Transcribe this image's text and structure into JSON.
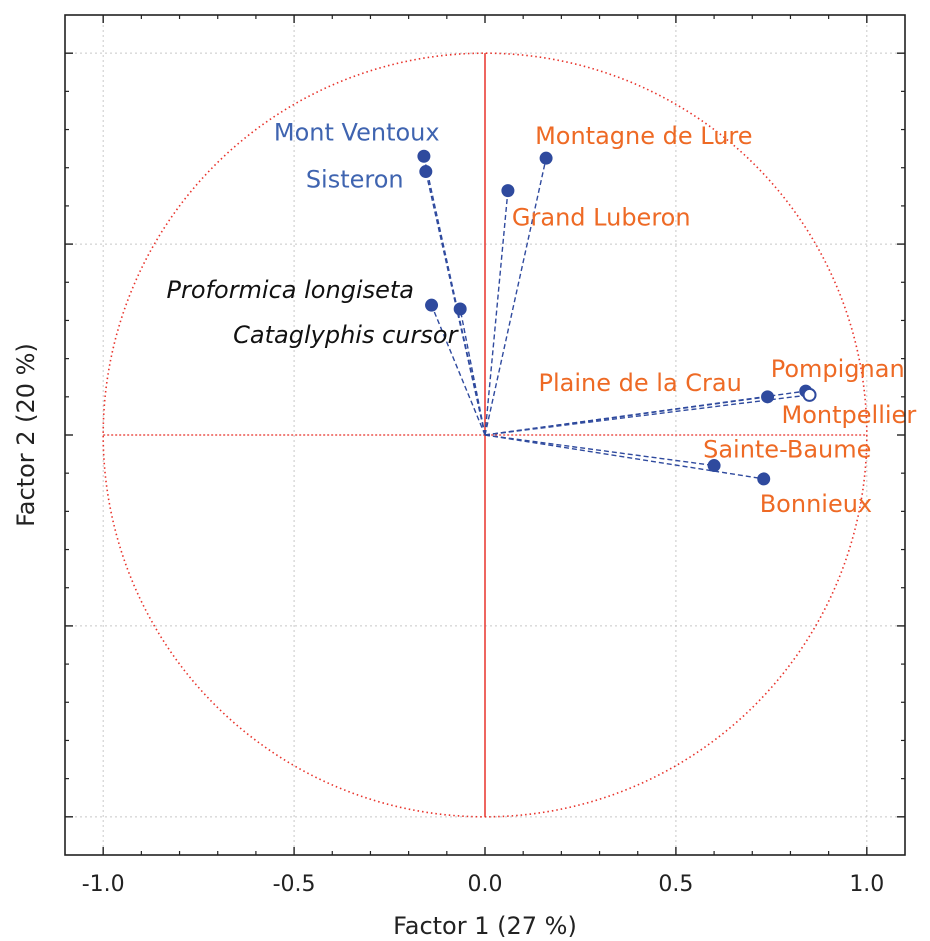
{
  "chart_data": {
    "type": "scatter",
    "title": "",
    "xlabel": "Factor 1 (27 %)",
    "ylabel": "Factor 2 (20 %)",
    "xlim": [
      -1.1,
      1.1
    ],
    "ylim": [
      -1.1,
      1.1
    ],
    "x_ticks": [
      -1.0,
      -0.5,
      0.0,
      0.5,
      1.0
    ],
    "x_tick_labels": [
      "-1.0",
      "-0.5",
      "0.0",
      "0.5",
      "1.0"
    ],
    "y_ticks": [
      -1.0,
      -0.5,
      0.0,
      0.5,
      1.0
    ],
    "grid": true,
    "unit_circle": true,
    "colors": {
      "circle": "#e8332b",
      "axes_cross": "#e8332b",
      "vectors": "#2f4a9e",
      "points": "#2f4a9e",
      "label_blue": "#3f64b0",
      "label_orange": "#ee6a25",
      "label_black": "#111111"
    },
    "points": [
      {
        "label": "Mont Ventoux",
        "x": -0.16,
        "y": 0.73,
        "label_color": "blue",
        "italic": false
      },
      {
        "label": "Sisteron",
        "x": -0.155,
        "y": 0.69,
        "label_color": "blue",
        "italic": false
      },
      {
        "label": "Montagne de Lure",
        "x": 0.16,
        "y": 0.725,
        "label_color": "orange",
        "italic": false
      },
      {
        "label": "Grand Luberon",
        "x": 0.06,
        "y": 0.64,
        "label_color": "orange",
        "italic": false
      },
      {
        "label": "Proformica longiseta",
        "x": -0.14,
        "y": 0.34,
        "label_color": "black",
        "italic": true
      },
      {
        "label": "Cataglyphis cursor",
        "x": -0.065,
        "y": 0.33,
        "label_color": "black",
        "italic": true
      },
      {
        "label": "Pompignan",
        "x": 0.84,
        "y": 0.115,
        "label_color": "orange",
        "italic": false
      },
      {
        "label": "Montpellier",
        "x": 0.85,
        "y": 0.105,
        "label_color": "orange",
        "italic": false,
        "open_marker": true
      },
      {
        "label": "Plaine de la Crau",
        "x": 0.74,
        "y": 0.1,
        "label_color": "orange",
        "italic": false
      },
      {
        "label": "Sainte-Baume",
        "x": 0.6,
        "y": -0.08,
        "label_color": "orange",
        "italic": false
      },
      {
        "label": "Bonnieux",
        "x": 0.73,
        "y": -0.115,
        "label_color": "orange",
        "italic": false
      }
    ]
  }
}
